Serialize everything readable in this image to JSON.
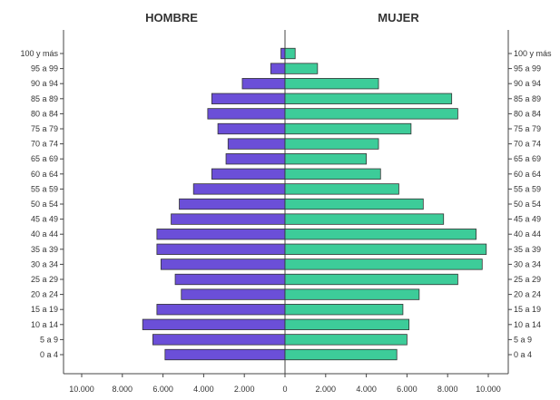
{
  "chart_data": {
    "type": "bar",
    "subtype": "population-pyramid",
    "categories": [
      "0 a 4",
      "5 a 9",
      "10 a 14",
      "15 a 19",
      "20 a 24",
      "25 a 29",
      "30 a 34",
      "35 a 39",
      "40 a 44",
      "45 a 49",
      "50 a 54",
      "55 a 59",
      "60 a 64",
      "65 a 69",
      "70 a 74",
      "75 a 79",
      "80 a 84",
      "85 a 89",
      "90 a 94",
      "95 a 99",
      "100 y más"
    ],
    "series": [
      {
        "name": "HOMBRE",
        "side": "left",
        "color": "#6b4fd8",
        "values": [
          5900,
          6500,
          7000,
          6300,
          5100,
          5400,
          6100,
          6300,
          6300,
          5600,
          5200,
          4500,
          3600,
          2900,
          2800,
          3300,
          3800,
          3600,
          2100,
          700,
          200
        ]
      },
      {
        "name": "MUJER",
        "side": "right",
        "color": "#3dcc99",
        "values": [
          5500,
          6000,
          6100,
          5800,
          6600,
          8500,
          9700,
          9900,
          9400,
          7800,
          6800,
          5600,
          4700,
          4000,
          4600,
          6200,
          8500,
          8200,
          4600,
          1600,
          500
        ]
      }
    ],
    "x_ticks": [
      "10.000",
      "8.000",
      "6.000",
      "4.000",
      "2.000",
      "0",
      "2.000",
      "4.000",
      "6.000",
      "8.000",
      "10.000"
    ],
    "xlim": [
      -10000,
      10000
    ],
    "legend": "none",
    "grid": false
  }
}
